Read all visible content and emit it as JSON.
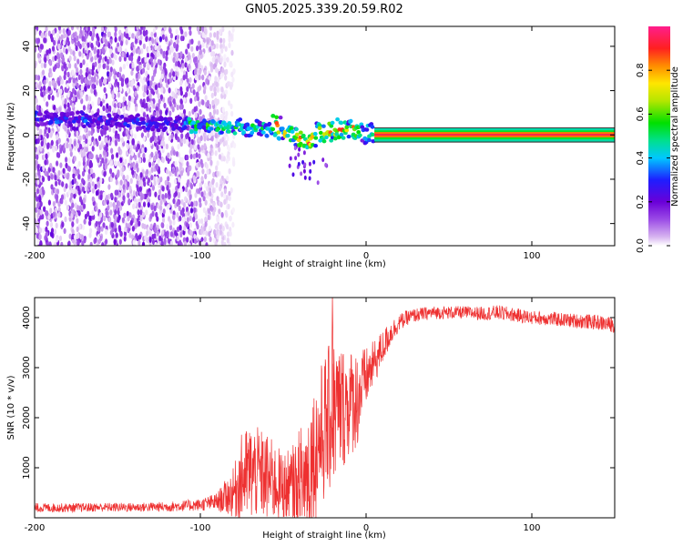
{
  "title": "GN05.2025.339.20.59.R02",
  "chart_data": [
    {
      "type": "heatmap",
      "panel": "top",
      "xlabel": "Height of straight line (km)",
      "ylabel": "Frequency (Hz)",
      "xlim": [
        -200,
        150
      ],
      "ylim": [
        -50,
        49
      ],
      "xticks": [
        -200,
        -100,
        0,
        100
      ],
      "xtick_labels": [
        "-200",
        "-100",
        "0",
        "100"
      ],
      "yticks": [
        -40,
        -20,
        0,
        20,
        40
      ],
      "ytick_labels": [
        "-40",
        "-20",
        "0",
        "20",
        "40"
      ],
      "colorbar": {
        "label": "Normalized spectral amplitude",
        "range": [
          0,
          1
        ],
        "ticks": [
          0.0,
          0.2,
          0.4,
          0.6,
          0.8
        ],
        "tick_labels": [
          "0.0",
          "0.2",
          "0.4",
          "0.6",
          "0.8"
        ],
        "colors": [
          "#ffffff",
          "#d7b4f0",
          "#9b4be6",
          "#6a00d8",
          "#1e1eff",
          "#00c8ff",
          "#00e08c",
          "#00e000",
          "#b4e600",
          "#ffe600",
          "#ff8c00",
          "#ff2020",
          "#ff1e8c"
        ]
      },
      "features": {
        "noise_region_x": [
          -200,
          -82
        ],
        "carrier_track": [
          [
            -200,
            8
          ],
          [
            -180,
            7
          ],
          [
            -160,
            6
          ],
          [
            -140,
            5.5
          ],
          [
            -120,
            5
          ],
          [
            -100,
            4.5
          ],
          [
            -85,
            4
          ],
          [
            -70,
            3.5
          ],
          [
            -60,
            3
          ],
          [
            -55,
            4.5
          ],
          [
            -50,
            2
          ],
          [
            -45,
            0
          ],
          [
            -40,
            -2
          ],
          [
            -35,
            -3
          ],
          [
            -30,
            0
          ],
          [
            -20,
            2
          ],
          [
            -10,
            3
          ],
          [
            0,
            1
          ],
          [
            5,
            0
          ],
          [
            150,
            0
          ]
        ],
        "steady_carrier_from_x": 5,
        "steady_carrier_freq": 0
      }
    },
    {
      "type": "line",
      "panel": "bottom",
      "xlabel": "Height of straight line (km)",
      "ylabel": "SNR (10 * v/v)",
      "xlim": [
        -200,
        150
      ],
      "ylim": [
        0,
        4400
      ],
      "xticks": [
        -200,
        -100,
        0,
        100
      ],
      "xtick_labels": [
        "-200",
        "-100",
        "0",
        "100"
      ],
      "yticks": [
        1000,
        2000,
        3000,
        4000
      ],
      "ytick_labels": [
        "1000",
        "2000",
        "3000",
        "4000"
      ],
      "series": [
        {
          "name": "SNR",
          "color": "#ee3030",
          "x": [
            -200,
            -180,
            -160,
            -140,
            -120,
            -100,
            -90,
            -80,
            -75,
            -70,
            -65,
            -60,
            -55,
            -50,
            -45,
            -40,
            -35,
            -30,
            -25,
            -20,
            -15,
            -10,
            -5,
            0,
            5,
            10,
            15,
            20,
            25,
            30,
            40,
            50,
            60,
            70,
            80,
            90,
            100,
            110,
            120,
            130,
            140,
            150
          ],
          "y": [
            200,
            200,
            210,
            210,
            220,
            260,
            320,
            500,
            800,
            900,
            900,
            800,
            700,
            600,
            500,
            600,
            900,
            1400,
            1800,
            2100,
            2200,
            2300,
            2400,
            2800,
            3100,
            3400,
            3700,
            3900,
            4000,
            4050,
            4100,
            4100,
            4100,
            4080,
            4100,
            4050,
            4000,
            3980,
            3950,
            3930,
            3900,
            3850
          ],
          "spread": [
            90,
            90,
            90,
            90,
            100,
            120,
            180,
            500,
            900,
            1000,
            900,
            900,
            800,
            700,
            900,
            1200,
            1400,
            1400,
            1500,
            1500,
            1300,
            1100,
            1000,
            600,
            450,
            350,
            250,
            170,
            150,
            140,
            130,
            130,
            130,
            140,
            150,
            140,
            140,
            140,
            140,
            150,
            150,
            150
          ]
        }
      ]
    }
  ]
}
